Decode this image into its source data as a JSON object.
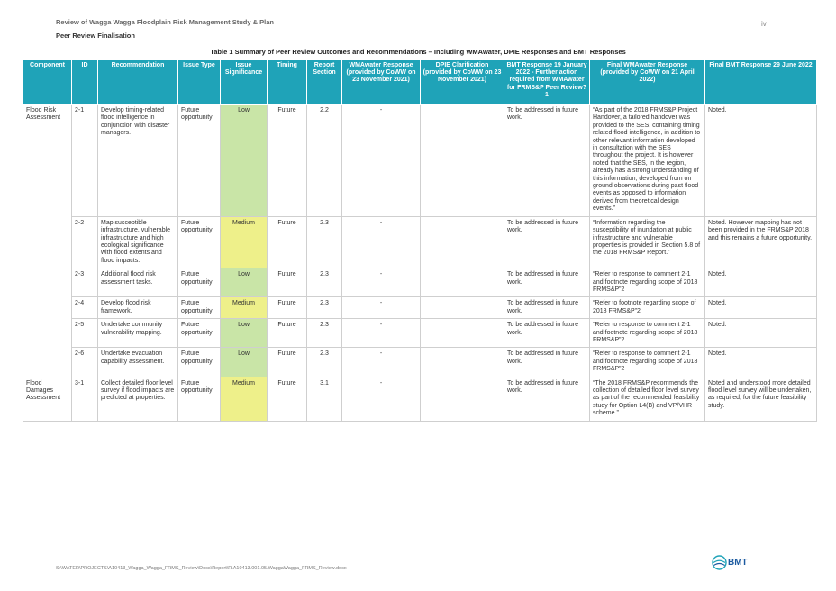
{
  "header": {
    "doc_title": "Review of Wagga Wagga Floodplain Risk Management Study & Plan",
    "section": "Peer Review Finalisation",
    "page_number": "iv"
  },
  "caption": "Table 1   Summary of Peer Review Outcomes and Recommendations – Including WMAwater, DPIE Responses and BMT Responses",
  "columns": [
    "Component",
    "ID",
    "Recommendation",
    "Issue Type",
    "Issue Significance",
    "Timing",
    "Report Section",
    "WMAwater Response (provided by CoWW on 23 November 2021)",
    "DPIE Clarification (provided by CoWW on 23 November 2021)",
    "BMT Response 19 January 2022 - Further action required from WMAwater for FRMS&P Peer Review?1",
    "Final WMAwater Response (provided by CoWW on 21 April 2022)",
    "Final BMT Response 29 June 2022"
  ],
  "components": [
    "Flood Risk Assessment",
    "Flood Damages Assessment"
  ],
  "rows": [
    {
      "id": "2-1",
      "recommendation": "Develop timing-related flood intelligence in conjunction with disaster managers.",
      "issue_type": "Future opportunity",
      "significance": "Low",
      "timing": "Future",
      "section": "2.2",
      "wma": "-",
      "dpie": "",
      "bmt": "To be addressed in future work.",
      "final_wma": "“As part of the 2018 FRMS&P Project Handover, a tailored handover was provided to the SES, containing timing related flood intelligence, in addition to other relevant information developed in consultation with the SES throughout the project. It is however noted that the SES, in the region, already has a strong understanding of this information, developed from on ground observations during past flood events as opposed to information derived from theoretical design events.”",
      "final_bmt": "Noted."
    },
    {
      "id": "2-2",
      "recommendation": "Map susceptible infrastructure, vulnerable infrastructure and high ecological significance with flood extents and flood impacts.",
      "issue_type": "Future opportunity",
      "significance": "Medium",
      "timing": "Future",
      "section": "2.3",
      "wma": "-",
      "dpie": "",
      "bmt": "To be addressed in future work.",
      "final_wma": "“Information regarding the susceptibility of inundation at public infrastructure and vulnerable properties is provided in Section 5.8 of the 2018 FRMS&P Report.”",
      "final_bmt": "Noted. However mapping has not been provided in the FRMS&P 2018 and this remains a future opportunity."
    },
    {
      "id": "2-3",
      "recommendation": "Additional flood risk assessment tasks.",
      "issue_type": "Future opportunity",
      "significance": "Low",
      "timing": "Future",
      "section": "2.3",
      "wma": "-",
      "dpie": "",
      "bmt": "To be addressed in future work.",
      "final_wma": "“Refer to response to comment 2-1 and footnote regarding scope of 2018 FRMS&P”2",
      "final_bmt": "Noted."
    },
    {
      "id": "2-4",
      "recommendation": "Develop flood risk framework.",
      "issue_type": "Future opportunity",
      "significance": "Medium",
      "timing": "Future",
      "section": "2.3",
      "wma": "-",
      "dpie": "",
      "bmt": "To be addressed in future work.",
      "final_wma": "“Refer to footnote regarding scope of 2018 FRMS&P”2",
      "final_bmt": "Noted."
    },
    {
      "id": "2-5",
      "recommendation": "Undertake community vulnerability mapping.",
      "issue_type": "Future opportunity",
      "significance": "Low",
      "timing": "Future",
      "section": "2.3",
      "wma": "-",
      "dpie": "",
      "bmt": "To be addressed in future work.",
      "final_wma": "“Refer to response to comment 2-1 and footnote regarding scope of 2018 FRMS&P”2",
      "final_bmt": "Noted."
    },
    {
      "id": "2-6",
      "recommendation": "Undertake evacuation capability assessment.",
      "issue_type": "Future opportunity",
      "significance": "Low",
      "timing": "Future",
      "section": "2.3",
      "wma": "-",
      "dpie": "",
      "bmt": "To be addressed in future work.",
      "final_wma": "“Refer to response to comment 2-1 and footnote regarding scope of 2018 FRMS&P”2",
      "final_bmt": "Noted."
    },
    {
      "id": "3-1",
      "recommendation": "Collect detailed floor level survey if flood impacts are predicted at properties.",
      "issue_type": "Future opportunity",
      "significance": "Medium",
      "timing": "Future",
      "section": "3.1",
      "wma": "-",
      "dpie": "",
      "bmt": "To be addressed in future work.",
      "final_wma": "“The 2018 FRMS&P recommends the collection of detailed floor level survey as part of the recommended feasibility study for Option L4(B) and VP/VHR scheme.”",
      "final_bmt": "Noted and understood more detailed flood level survey will be undertaken, as required, for the future feasibility study."
    }
  ],
  "footer": "S:\\WATER\\PROJECTS\\A10413_Wagga_Wagga_FRMS_Review\\Docs\\Report\\R.A10413.001.05.WaggaWagga_FRMS_Review.docx",
  "logo_text": "BMT",
  "colors": {
    "header": "#1fa3b8",
    "low": "#c9e5a7",
    "medium": "#eef08a"
  }
}
